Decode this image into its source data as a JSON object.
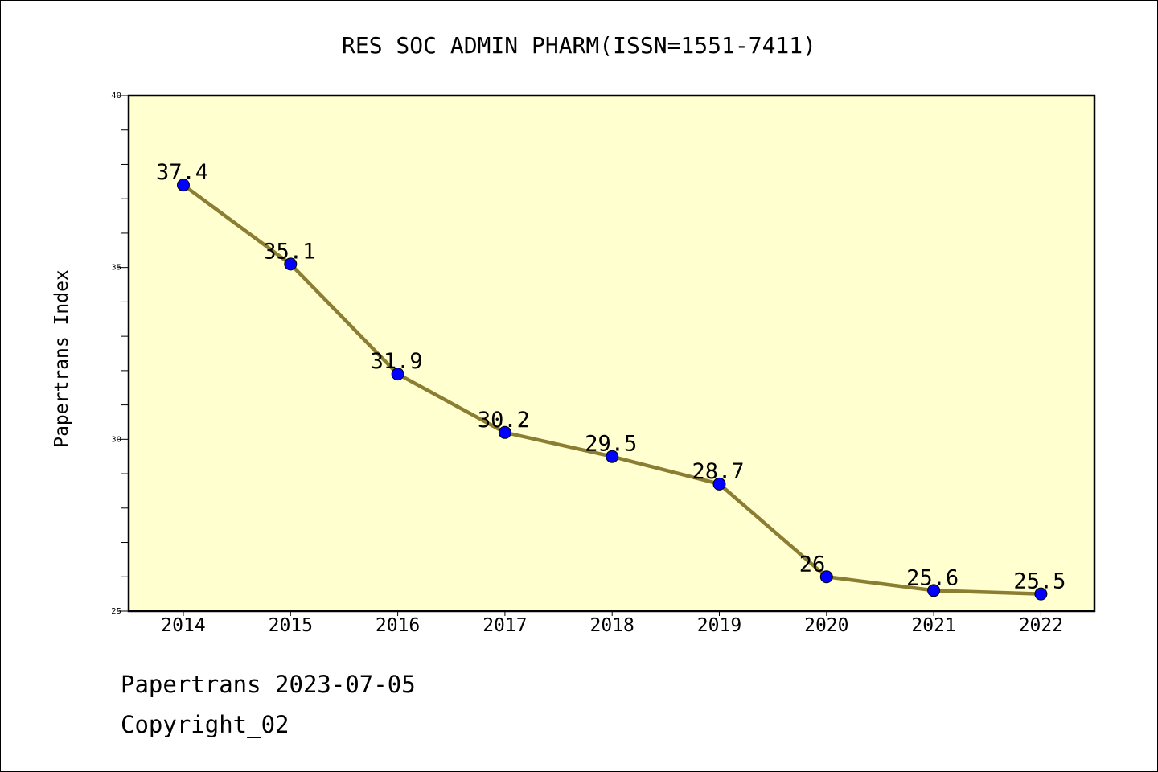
{
  "chart_data": {
    "type": "line",
    "title": "RES SOC ADMIN PHARM(ISSN=1551-7411)",
    "xlabel": "",
    "ylabel": "Papertrans Index",
    "categories": [
      "2014",
      "2015",
      "2016",
      "2017",
      "2018",
      "2019",
      "2020",
      "2021",
      "2022"
    ],
    "values": [
      37.4,
      35.1,
      31.9,
      30.2,
      29.5,
      28.7,
      26,
      25.6,
      25.5
    ],
    "data_labels": [
      "37.4",
      "35.1",
      "31.9",
      "30.2",
      "29.5",
      "28.7",
      "26",
      "25.6",
      "25.5"
    ],
    "ylim": [
      25,
      40
    ],
    "yticks": [
      25,
      30,
      35,
      40
    ],
    "ytick_labels": [
      "25",
      "30",
      "35",
      "40"
    ],
    "grid": false,
    "colors": {
      "plot_background": "#ffffd0",
      "line": "#8b7d32",
      "marker": "#0000ff"
    }
  },
  "footer": {
    "date_line": "Papertrans 2023-07-05",
    "copyright_line": "Copyright_02"
  }
}
